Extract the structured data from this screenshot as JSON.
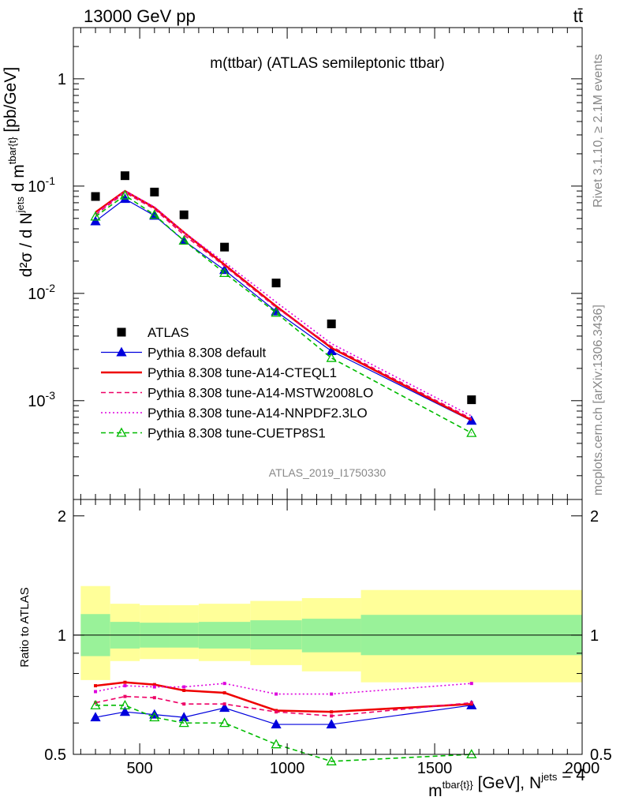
{
  "header": {
    "energy_label": "13000 GeV pp",
    "process_label": "tt̄"
  },
  "side_labels": {
    "rivet": "Rivet 3.1.10, ≥ 2.1M events",
    "mcplots": "mcplots.cern.ch [arXiv:1306.3436]"
  },
  "chart_data": [
    {
      "type": "scatter",
      "title": "m(ttbar) (ATLAS semileptonic ttbar)",
      "analysis_id": "ATLAS_2019_I1750330",
      "ylabel": "d²σ / d N^jets d m^tbar{t} [pb/GeV]",
      "xlim": [
        275,
        2000
      ],
      "ylim": [
        0.00012,
        3.0
      ],
      "yscale": "log",
      "ytick_labels": [
        "10^-3",
        "10^-2",
        "10^-1",
        "1"
      ],
      "legend_position": "lower-left",
      "x": [
        350,
        450,
        550,
        650,
        787.5,
        962.5,
        1150,
        1625
      ],
      "series": [
        {
          "name": "ATLAS",
          "color": "#000000",
          "marker": "square",
          "line": "none",
          "values": [
            0.08,
            0.125,
            0.088,
            0.054,
            0.027,
            0.0125,
            0.0052,
            0.00102
          ]
        },
        {
          "name": "Pythia 8.308 default",
          "color": "#0000dd",
          "marker": "triangle-filled",
          "line": "solid-thin",
          "values": [
            0.047,
            0.076,
            0.053,
            0.031,
            0.0165,
            0.0068,
            0.0029,
            0.00065
          ]
        },
        {
          "name": "Pythia 8.308 tune-A14-CTEQL1",
          "color": "#ee0000",
          "marker": "none",
          "line": "solid-thick",
          "values": [
            0.057,
            0.09,
            0.063,
            0.037,
            0.0185,
            0.0076,
            0.0031,
            0.00066
          ]
        },
        {
          "name": "Pythia 8.308 tune-A14-MSTW2008LO",
          "color": "#ee0066",
          "marker": "none",
          "line": "dashed",
          "values": [
            0.054,
            0.087,
            0.061,
            0.035,
            0.018,
            0.0074,
            0.0032,
            0.00068
          ]
        },
        {
          "name": "Pythia 8.308 tune-A14-NNPDF2.3LO",
          "color": "#dd00dd",
          "marker": "none",
          "line": "dotted",
          "values": [
            0.055,
            0.09,
            0.064,
            0.037,
            0.0195,
            0.0083,
            0.0034,
            0.00072
          ]
        },
        {
          "name": "Pythia 8.308 tune-CUETP8S1",
          "color": "#00bb00",
          "marker": "triangle-open",
          "line": "dashed",
          "values": [
            0.052,
            0.082,
            0.054,
            0.031,
            0.0155,
            0.0066,
            0.0025,
            0.0005
          ]
        }
      ]
    },
    {
      "type": "line",
      "ylabel": "Ratio to ATLAS",
      "xlabel": "m^tbar{t}} [GeV], N^jets = 4",
      "xlim": [
        275,
        2000
      ],
      "ylim": [
        0.5,
        2.2
      ],
      "yscale": "log",
      "x_tick_labels": [
        "500",
        "1000",
        "1500",
        "2000"
      ],
      "y_tick_labels": [
        "0.5",
        "1",
        "2"
      ],
      "bands": [
        {
          "x_lo": 300,
          "x_hi": 400,
          "inner": [
            0.885,
            1.13
          ],
          "outer": [
            0.77,
            1.33
          ]
        },
        {
          "x_lo": 400,
          "x_hi": 500,
          "inner": [
            0.925,
            1.08
          ],
          "outer": [
            0.86,
            1.2
          ]
        },
        {
          "x_lo": 500,
          "x_hi": 600,
          "inner": [
            0.93,
            1.075
          ],
          "outer": [
            0.87,
            1.19
          ]
        },
        {
          "x_lo": 600,
          "x_hi": 700,
          "inner": [
            0.93,
            1.075
          ],
          "outer": [
            0.87,
            1.19
          ]
        },
        {
          "x_lo": 700,
          "x_hi": 875,
          "inner": [
            0.925,
            1.08
          ],
          "outer": [
            0.86,
            1.2
          ]
        },
        {
          "x_lo": 875,
          "x_hi": 1050,
          "inner": [
            0.92,
            1.09
          ],
          "outer": [
            0.84,
            1.22
          ]
        },
        {
          "x_lo": 1050,
          "x_hi": 1250,
          "inner": [
            0.905,
            1.1
          ],
          "outer": [
            0.81,
            1.24
          ]
        },
        {
          "x_lo": 1250,
          "x_hi": 2000,
          "inner": [
            0.89,
            1.125
          ],
          "outer": [
            0.76,
            1.3
          ]
        }
      ],
      "x": [
        350,
        450,
        550,
        650,
        787.5,
        962.5,
        1150,
        1625
      ],
      "series": [
        {
          "name": "Pythia 8.308 default",
          "color": "#0000dd",
          "marker": "triangle-filled",
          "line": "solid-thin",
          "values": [
            0.62,
            0.64,
            0.63,
            0.62,
            0.655,
            0.595,
            0.595,
            0.665
          ]
        },
        {
          "name": "Pythia 8.308 tune-A14-CTEQL1",
          "color": "#ee0000",
          "marker": "none",
          "line": "solid-thick",
          "values": [
            0.745,
            0.76,
            0.75,
            0.725,
            0.715,
            0.645,
            0.64,
            0.67
          ]
        },
        {
          "name": "Pythia 8.308 tune-A14-MSTW2008LO",
          "color": "#ee0066",
          "marker": "none",
          "line": "dashed",
          "values": [
            0.675,
            0.7,
            0.695,
            0.67,
            0.67,
            0.64,
            0.625,
            0.675
          ]
        },
        {
          "name": "Pythia 8.308 tune-A14-NNPDF2.3LO",
          "color": "#dd00dd",
          "marker": "none",
          "line": "dotted",
          "values": [
            0.72,
            0.745,
            0.74,
            0.74,
            0.755,
            0.71,
            0.71,
            0.755
          ]
        },
        {
          "name": "Pythia 8.308 tune-CUETP8S1",
          "color": "#00bb00",
          "marker": "triangle-open",
          "line": "dashed",
          "values": [
            0.665,
            0.665,
            0.62,
            0.6,
            0.6,
            0.53,
            0.48,
            0.5
          ]
        }
      ]
    }
  ]
}
